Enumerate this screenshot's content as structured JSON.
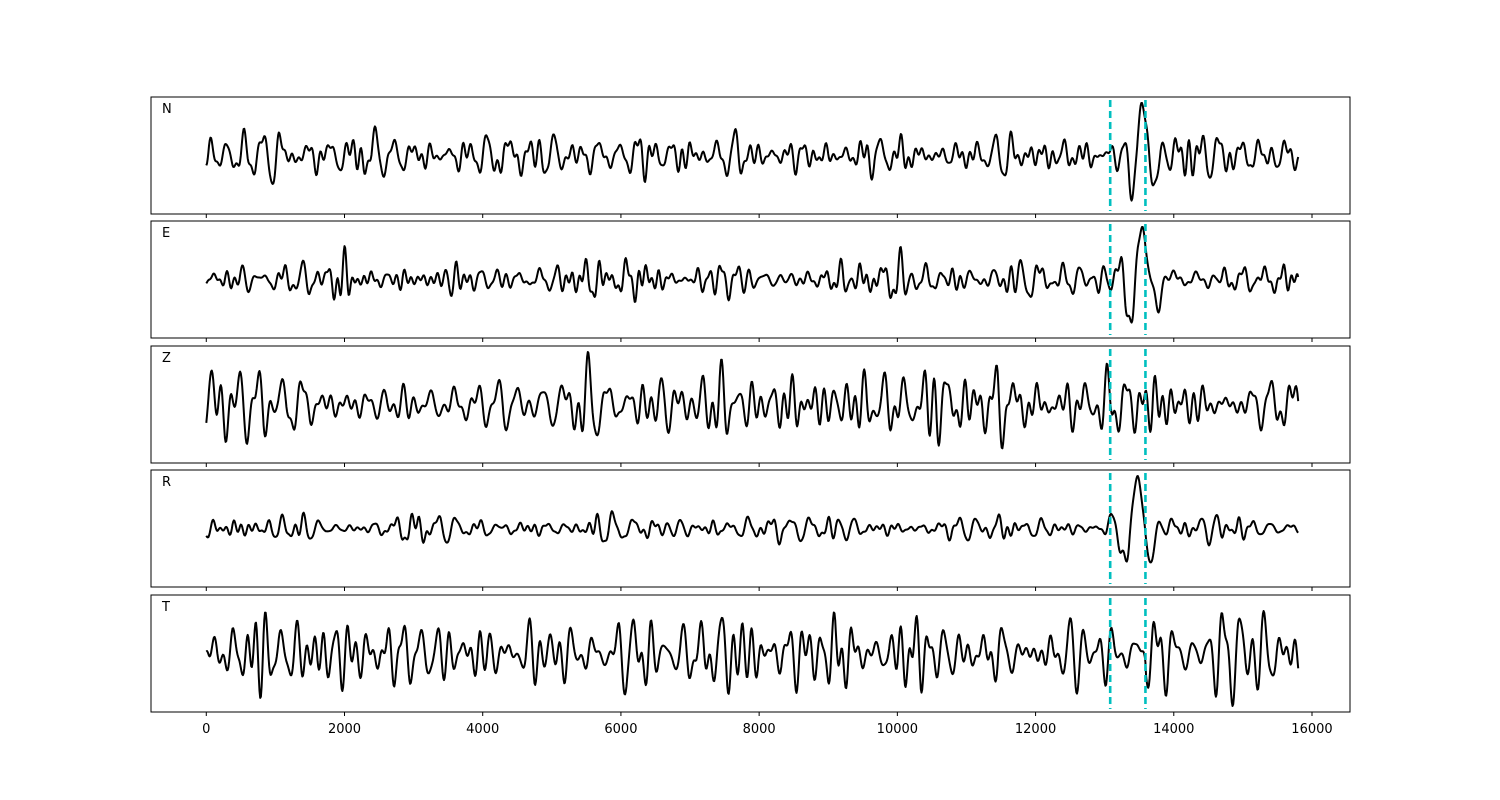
{
  "chart_data": {
    "type": "line",
    "title": "",
    "xlabel": "",
    "ylabel": "",
    "xlim": [
      -800,
      16550
    ],
    "n_samples": 15800,
    "x_ticks": [
      0,
      2000,
      4000,
      6000,
      8000,
      10000,
      12000,
      14000,
      16000
    ],
    "x_tick_labels": [
      "0",
      "2000",
      "4000",
      "6000",
      "8000",
      "10000",
      "12000",
      "14000",
      "16000"
    ],
    "picks": [
      13080,
      13590
    ],
    "colors": {
      "trace": "#000000",
      "pick": "#00bfbf"
    },
    "grid": false,
    "legend": "none",
    "panels": [
      {
        "label": "N",
        "noise_amp": 0.9,
        "events": [
          {
            "x": 13300,
            "amp": 0.6,
            "period": 180,
            "width": 200
          },
          {
            "x": 13550,
            "amp": 2.0,
            "period": 380,
            "width": 160
          }
        ],
        "coda_amp": 1.2
      },
      {
        "label": "E",
        "noise_amp": 0.5,
        "events": [
          {
            "x": 13350,
            "amp": -0.8,
            "period": 300,
            "width": 200
          },
          {
            "x": 13560,
            "amp": 1.8,
            "period": 400,
            "width": 170
          }
        ],
        "coda_amp": 0.9
      },
      {
        "label": "Z",
        "noise_amp": 1.2,
        "events": [],
        "coda_amp": 1.0
      },
      {
        "label": "R",
        "noise_amp": 0.45,
        "events": [
          {
            "x": 13480,
            "amp": 1.9,
            "period": 420,
            "width": 200
          }
        ],
        "coda_amp": 0.9
      },
      {
        "label": "T",
        "noise_amp": 1.2,
        "events": [
          {
            "x": 13580,
            "amp": 1.4,
            "period": 160,
            "width": 120
          }
        ],
        "coda_amp": 1.2
      }
    ]
  }
}
